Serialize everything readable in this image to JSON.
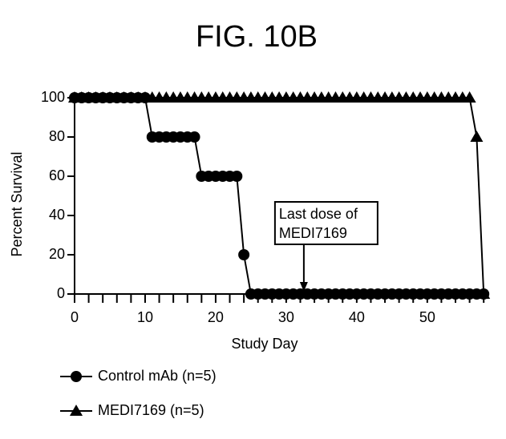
{
  "chart_data": {
    "type": "line",
    "title": "FIG. 10B",
    "xlabel": "Study Day",
    "ylabel": "Percent Survival",
    "x": [
      0,
      1,
      2,
      3,
      4,
      5,
      6,
      7,
      8,
      9,
      10,
      11,
      12,
      13,
      14,
      15,
      16,
      17,
      18,
      19,
      20,
      21,
      22,
      23,
      24,
      25,
      26,
      27,
      28,
      29,
      30,
      31,
      32,
      33,
      34,
      35,
      36,
      37,
      38,
      39,
      40,
      41,
      42,
      43,
      44,
      45,
      46,
      47,
      48,
      49,
      50,
      51,
      52,
      53,
      54,
      55,
      56,
      57,
      58
    ],
    "series": [
      {
        "name": "Control mAb (n=5)",
        "marker": "circle",
        "color": "#000000",
        "values": [
          100,
          100,
          100,
          100,
          100,
          100,
          100,
          100,
          100,
          100,
          100,
          80,
          80,
          80,
          80,
          80,
          80,
          80,
          60,
          60,
          60,
          60,
          60,
          60,
          20,
          0,
          0,
          0,
          0,
          0,
          0,
          0,
          0,
          0,
          0,
          0,
          0,
          0,
          0,
          0,
          0,
          0,
          0,
          0,
          0,
          0,
          0,
          0,
          0,
          0,
          0,
          0,
          0,
          0,
          0,
          0,
          0,
          0,
          0
        ]
      },
      {
        "name": "MEDI7169 (n=5)",
        "marker": "triangle",
        "color": "#000000",
        "values": [
          100,
          100,
          100,
          100,
          100,
          100,
          100,
          100,
          100,
          100,
          100,
          100,
          100,
          100,
          100,
          100,
          100,
          100,
          100,
          100,
          100,
          100,
          100,
          100,
          100,
          100,
          100,
          100,
          100,
          100,
          100,
          100,
          100,
          100,
          100,
          100,
          100,
          100,
          100,
          100,
          100,
          100,
          100,
          100,
          100,
          100,
          100,
          100,
          100,
          100,
          100,
          100,
          100,
          100,
          100,
          100,
          100,
          80,
          0
        ]
      }
    ],
    "xlim": [
      0,
      59
    ],
    "xticks": [
      0,
      10,
      20,
      30,
      40,
      50
    ],
    "xminorticks": [
      2,
      4,
      6,
      8,
      12,
      14,
      16,
      18,
      22,
      24,
      26,
      28,
      32,
      34,
      36,
      38,
      42,
      44,
      46,
      48,
      52,
      54,
      56,
      58
    ],
    "ylim": [
      0,
      100
    ],
    "yticks": [
      0,
      20,
      40,
      60,
      80,
      100
    ],
    "annotation": {
      "lines": [
        "Last dose of",
        "MEDI7169"
      ],
      "x": 32.5
    }
  }
}
